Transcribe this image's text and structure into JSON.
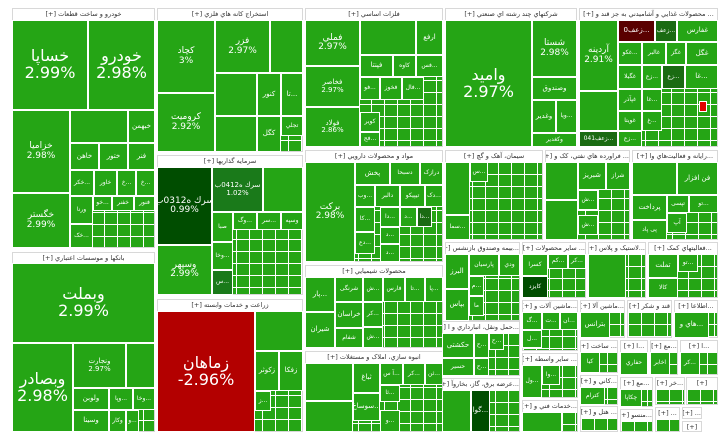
{
  "colors": {
    "up": "#25a515",
    "up_dark": "#1a6b12",
    "up_darker": "#004d00",
    "mid_dark": "#1a7a1a",
    "down": "#b30000",
    "down_dark": "#5a0000",
    "down_bright": "#e00000",
    "border": "#ffffff"
  },
  "sectors": [
    {
      "title": "خودرو و ساخت قطعات [+]",
      "tiles": [
        {
          "label": "خساپا",
          "change": "2.99%"
        },
        {
          "label": "خودرو",
          "change": "2.98%"
        },
        {
          "label": "خزامیا",
          "change": "2.98%"
        },
        {
          "label": "خگستر",
          "change": "2.99%"
        },
        {
          "label": "",
          "change": ""
        },
        {
          "label": "خبهمن"
        },
        {
          "label": "خاهن"
        },
        {
          "label": "ختور"
        },
        {
          "label": "فنر"
        },
        {
          "label": "...خکر"
        },
        {
          "label": "خاور"
        },
        {
          "label": "...خ"
        },
        {
          "label": "...خ"
        },
        {
          "label": "ورنا"
        },
        {
          "label": "...خو"
        },
        {
          "label": "خفنر"
        },
        {
          "label": "فنور"
        },
        {
          "label": "...خک"
        }
      ]
    },
    {
      "title": "استخراج کانه هاي فلزي [+]",
      "tiles": [
        {
          "label": "کچاد",
          "change": "3%"
        },
        {
          "label": "کرومیت",
          "change": "2.92%"
        },
        {
          "label": "فزر",
          "change": "2.97%"
        },
        {
          "label": ""
        },
        {
          "label": ""
        },
        {
          "label": "کنور"
        },
        {
          "label": "...تا"
        },
        {
          "label": ""
        },
        {
          "label": "کگل"
        },
        {
          "label": "تجلي"
        }
      ]
    },
    {
      "title": "سرمايه گذاريها [+]",
      "tiles": [
        {
          "label": "سرك ه0312ب",
          "change": "0.99%",
          "color": "up_darker"
        },
        {
          "label": "سرك ه0412ب",
          "change": "1.02%",
          "color": "mid_dark"
        },
        {
          "label": ""
        },
        {
          "label": "وسپهر",
          "change": "2.99%"
        },
        {
          "label": "صبا"
        },
        {
          "label": "...وگ"
        },
        {
          "label": "...سر"
        },
        {
          "label": "وسپه"
        },
        {
          "label": "...وخا"
        },
        {
          "label": "...س",
          "color": "mid_dark"
        }
      ]
    },
    {
      "title": "بانکها و موسسات اعتباري [+]",
      "tiles": [
        {
          "label": "وبملت",
          "change": "2.99%"
        },
        {
          "label": "وبصادر",
          "change": "2.98%"
        },
        {
          "label": "ونجارت",
          "change": "2.97%"
        },
        {
          "label": ""
        },
        {
          "label": "ولوبن"
        },
        {
          "label": "...وپا"
        },
        {
          "label": "...وخا"
        },
        {
          "label": "وسینا"
        },
        {
          "label": "وکار"
        },
        {
          "label": "...و"
        }
      ]
    },
    {
      "title": "زراعت و خدمات وابسته [+]",
      "tiles": [
        {
          "label": "زماهان",
          "change": "-2.96%",
          "color": "down"
        },
        {
          "label": ""
        },
        {
          "label": "زکوثر"
        },
        {
          "label": "زفکا"
        },
        {
          "label": "...ز"
        }
      ]
    },
    {
      "title": "فلزات اساسي [+]",
      "tiles": [
        {
          "label": "فملي",
          "change": "2.97%"
        },
        {
          "label": "فخاصر",
          "change": "2.97%"
        },
        {
          "label": "فولاد",
          "change": "2.86%"
        },
        {
          "label": ""
        },
        {
          "label": "ارفع"
        },
        {
          "label": "فپنتا"
        },
        {
          "label": "کاوه"
        },
        {
          "label": "...فس"
        },
        {
          "label": "...فو"
        },
        {
          "label": "فخوز"
        },
        {
          "label": "...فال"
        },
        {
          "label": "کویر"
        },
        {
          "label": "...فج"
        }
      ]
    },
    {
      "title": "شرکتهاي چند رشته اي صنعتي [+]",
      "tiles": [
        {
          "label": "وامید",
          "change": "2.97%"
        },
        {
          "label": "شستا",
          "change": "2.98%"
        },
        {
          "label": "وصندوق"
        },
        {
          "label": "وغدیر"
        },
        {
          "label": "...ویا"
        },
        {
          "label": "وکغدیر"
        }
      ]
    },
    {
      "title": "... محصولات غذايي و آشاميدني به جز قند و [+]",
      "tiles": [
        {
          "label": "آردینه",
          "change": "2.91%"
        },
        {
          "label": ""
        },
        {
          "label": "...زعف041",
          "color": "up_dark"
        },
        {
          "label": "...زعف0",
          "color": "down_dark"
        },
        {
          "label": "...زعف",
          "color": "up_dark"
        },
        {
          "label": "غفارس"
        },
        {
          "label": "...غکو"
        },
        {
          "label": "غالبر"
        },
        {
          "label": "غگز"
        },
        {
          "label": "غگل"
        },
        {
          "label": "غگیلا"
        },
        {
          "label": "...زع"
        },
        {
          "label": "...زع",
          "color": "up_dark"
        },
        {
          "label": "...غا"
        },
        {
          "label": "غپآذر"
        },
        {
          "label": "...غا"
        },
        {
          "label": "غویتا"
        },
        {
          "label": "...غ"
        },
        {
          "label": "...زع"
        },
        {
          "label": "",
          "color": "down_bright"
        }
      ]
    },
    {
      "title": "مواد و محصولات دارويي [+]",
      "tiles": [
        {
          "label": "برکت",
          "change": "2.98%"
        },
        {
          "label": "پخش"
        },
        {
          "label": "دسبحا"
        },
        {
          "label": "درازک"
        },
        {
          "label": "...وب"
        },
        {
          "label": "دالبر"
        },
        {
          "label": "تیپیکو"
        },
        {
          "label": "...دک"
        },
        {
          "label": "...کا"
        },
        {
          "label": "...دا"
        },
        {
          "label": "...د"
        },
        {
          "label": "...دا",
          "color": "up_dark"
        },
        {
          "label": "...د"
        },
        {
          "label": "...دع"
        },
        {
          "label": "...د"
        }
      ]
    },
    {
      "title": "محصولات شيميايي [+]",
      "tiles": [
        {
          "label": "...پار"
        },
        {
          "label": "شرنگی"
        },
        {
          "label": "...ش"
        },
        {
          "label": "فارس"
        },
        {
          "label": "...تا"
        },
        {
          "label": "...پا"
        },
        {
          "label": "شیران"
        },
        {
          "label": "خراسان"
        },
        {
          "label": "...کر"
        },
        {
          "label": "شفام"
        },
        {
          "label": "...ش"
        }
      ]
    },
    {
      "title": "انبوه سازي، املاک و مستغلات [+]",
      "tiles": [
        {
          "label": ""
        },
        {
          "label": ""
        },
        {
          "label": "ثباغ"
        },
        {
          "label": "...آ س"
        },
        {
          "label": "...کر"
        },
        {
          "label": "...ثن"
        },
        {
          "label": "...سوساخ"
        },
        {
          "label": "...ثا"
        },
        {
          "label": "...و"
        }
      ]
    },
    {
      "title": "سيمان، آهک و گچ [+]",
      "tiles": [
        {
          "label": ""
        },
        {
          "label": "...س"
        },
        {
          "label": "...سما"
        }
      ]
    },
    {
      "title": "... فراورده هاي نفتي، کک و [+]",
      "tiles": [
        {
          "label": ""
        },
        {
          "label": "شبریز"
        },
        {
          "label": "شراز"
        },
        {
          "label": "...ش"
        },
        {
          "label": ""
        },
        {
          "label": "...ش"
        }
      ]
    },
    {
      "title": "...رايانه و فعاليت‌هاي وا [+]",
      "tiles": [
        {
          "label": ""
        },
        {
          "label": "فن افزار"
        },
        {
          "label": "پرداخت"
        },
        {
          "label": "تپسی"
        },
        {
          "label": "...تو"
        },
        {
          "label": "پی پاد"
        },
        {
          "label": "آپ"
        }
      ]
    },
    {
      "title": "...بيمه وصندوق بازنشس [+]",
      "tiles": [
        {
          "label": "البرز"
        },
        {
          "label": "پارسیان"
        },
        {
          "label": "ودي"
        },
        {
          "label": "بپاس"
        },
        {
          "label": "...م"
        },
        {
          "label": "ما"
        }
      ]
    },
    {
      "title": "... ساير محصولات [+]",
      "tiles": [
        {
          "label": "کسرا"
        },
        {
          "label": "...کم"
        },
        {
          "label": "...کر"
        },
        {
          "label": "کایزد",
          "color": "up_darker"
        }
      ]
    },
    {
      "title": "...لاستيک و پلاس [+]",
      "tiles": [
        {
          "label": ""
        }
      ]
    },
    {
      "title": "...فعاليتهاي کمک [+]",
      "tiles": [
        {
          "label": "تملت"
        },
        {
          "label": "...تو"
        },
        {
          "label": "کالا"
        }
      ]
    },
    {
      "title": "...حمل ونقل، انبارداري و ا [+]",
      "tiles": [
        {
          "label": "حکشتی"
        },
        {
          "label": "...ح"
        },
        {
          "label": "...ح"
        },
        {
          "label": "حسیر"
        },
        {
          "label": "...ح"
        }
      ]
    },
    {
      "title": "...عرضه برق، گاز، بخاروآ [+]",
      "tiles": [
        {
          "label": ""
        },
        {
          "label": "...گوا",
          "color": "up_darker"
        }
      ]
    },
    {
      "title": "...ماشين آلات و [+]",
      "tiles": [
        {
          "label": "...گ"
        },
        {
          "label": "...ت"
        },
        {
          "label": "...ان"
        },
        {
          "label": "...ل"
        }
      ]
    },
    {
      "title": "...ماشين آلا [+]",
      "tiles": [
        {
          "label": "بترانس"
        }
      ]
    },
    {
      "title": "قند و شکر [+]",
      "tiles": []
    },
    {
      "title": "...اطلاعا [+]",
      "tiles": [
        {
          "label": "...هاي و"
        }
      ]
    },
    {
      "title": "... ساخت [+]",
      "tiles": [
        {
          "label": "کیا"
        }
      ]
    },
    {
      "title": "...ا [+]",
      "tiles": [
        {
          "label": "حفاري"
        }
      ]
    },
    {
      "title": "...مع [+]",
      "tiles": [
        {
          "label": "اخابر"
        }
      ]
    },
    {
      "title": "...ا [+]",
      "tiles": [
        {
          "label": "...کر"
        }
      ]
    },
    {
      "title": "... ساير واسطه [+]",
      "tiles": [
        {
          "label": "...ول"
        },
        {
          "label": "...وا"
        }
      ]
    },
    {
      "title": "...کاني و [+]",
      "tiles": [
        {
          "label": "کترام"
        }
      ]
    },
    {
      "title": "...مع [+]",
      "tiles": [
        {
          "label": "چکاپا"
        }
      ]
    },
    {
      "title": "...خر [+]",
      "tiles": []
    },
    {
      "title": "[+]",
      "tiles": []
    },
    {
      "title": "...خدمات فني و [+]",
      "tiles": [
        {
          "label": ""
        }
      ]
    },
    {
      "title": "... هتل و [+]",
      "tiles": []
    },
    {
      "title": "...منسو [+]",
      "tiles": []
    },
    {
      "title": "... [+]",
      "tiles": []
    },
    {
      "title": "... [+]",
      "tiles": []
    },
    {
      "title": "[+]",
      "tiles": []
    }
  ]
}
